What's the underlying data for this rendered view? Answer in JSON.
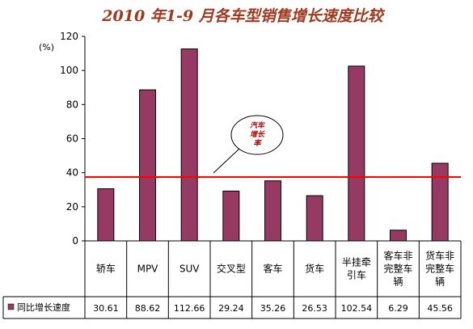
{
  "chart_data": {
    "type": "bar",
    "title": "2010 年1-9 月各车型销售增长速度比较",
    "ylabel": "(%)",
    "ylim": [
      0,
      120
    ],
    "yticks": [
      "0",
      "20",
      "40",
      "60",
      "80",
      "100",
      "120"
    ],
    "categories": [
      [
        "轿车"
      ],
      [
        "MPV"
      ],
      [
        "SUV"
      ],
      [
        "交叉型"
      ],
      [
        "客车"
      ],
      [
        "货车"
      ],
      [
        "半挂牵",
        "引车"
      ],
      [
        "客车非",
        "完整车",
        "辆"
      ],
      [
        "货车非",
        "完整车",
        "辆"
      ]
    ],
    "series": [
      {
        "name": "同比增长速度",
        "values": [
          30.61,
          88.62,
          112.66,
          29.24,
          35.26,
          26.53,
          102.54,
          6.29,
          45.56
        ],
        "value_labels": [
          "30.61",
          "88.62",
          "112.66",
          "29.24",
          "35.26",
          "26.53",
          "102.54",
          "6.29",
          "45.56"
        ],
        "color": "#963a64"
      }
    ],
    "reference_line": {
      "value": 37.5,
      "color": "#ff0000",
      "label": [
        "汽车",
        "增长",
        "率"
      ]
    },
    "grid": false,
    "legend": "bottom-left data table"
  }
}
